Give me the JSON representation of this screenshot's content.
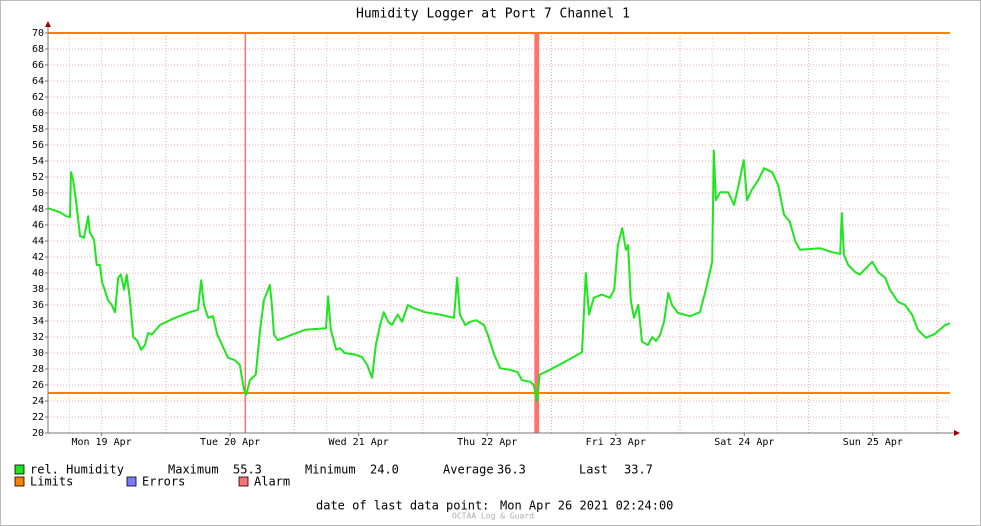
{
  "chart_data": {
    "type": "line",
    "title": "Humidity Logger at Port 7 Channel 1",
    "xlim": [
      2.0,
      170.4
    ],
    "xticks": [
      {
        "value": 12,
        "label": "Mon 19 Apr"
      },
      {
        "value": 36,
        "label": "Tue 20 Apr"
      },
      {
        "value": 60,
        "label": "Wed 21 Apr"
      },
      {
        "value": 84,
        "label": "Thu 22 Apr"
      },
      {
        "value": 108,
        "label": "Fri 23 Apr"
      },
      {
        "value": 132,
        "label": "Sat 24 Apr"
      },
      {
        "value": 156,
        "label": "Sun 25 Apr"
      }
    ],
    "xgrid": [
      6,
      12,
      18,
      24,
      30,
      36,
      42,
      48,
      54,
      60,
      66,
      72,
      78,
      84,
      90,
      96,
      102,
      108,
      114,
      120,
      126,
      132,
      138,
      144,
      150,
      156,
      162,
      168
    ],
    "ylim": [
      20,
      70
    ],
    "yticks": [
      20,
      22,
      24,
      26,
      28,
      30,
      32,
      34,
      36,
      38,
      40,
      42,
      44,
      46,
      48,
      50,
      52,
      54,
      56,
      58,
      60,
      62,
      64,
      66,
      68,
      70
    ],
    "grid": true,
    "series": [
      {
        "name": "rel. Humidity",
        "color": "#1ee61e",
        "x": [
          2.0,
          4.2,
          5.4,
          6.1,
          6.3,
          6.7,
          7.2,
          8.0,
          8.7,
          9.5,
          9.8,
          10.6,
          11.1,
          11.7,
          12.1,
          12.5,
          13.2,
          13.9,
          14.5,
          15.1,
          15.6,
          16.2,
          16.7,
          17.3,
          17.9,
          18.6,
          19.4,
          20.1,
          20.7,
          21.4,
          22.9,
          25.7,
          28.5,
          30.0,
          30.6,
          31.1,
          31.9,
          32.8,
          33.6,
          34.5,
          35.6,
          36.9,
          37.8,
          38.6,
          39.0,
          39.7,
          40.8,
          41.6,
          42.3,
          43.1,
          43.4,
          43.8,
          44.2,
          44.9,
          46.1,
          47.6,
          50.0,
          53.9,
          54.3,
          54.8,
          55.8,
          56.5,
          57.4,
          59.3,
          60.6,
          61.6,
          62.5,
          63.2,
          64.0,
          64.7,
          65.5,
          66.2,
          67.3,
          68.1,
          69.2,
          70.3,
          72.4,
          75.2,
          77.8,
          78.4,
          78.9,
          79.9,
          80.8,
          81.9,
          83.4,
          84.1,
          85.3,
          86.4,
          88.3,
          89.7,
          90.5,
          92.0,
          92.7,
          93.3,
          93.8,
          95.7,
          98.5,
          101.7,
          102.4,
          103.0,
          103.9,
          105.4,
          106.9,
          107.7,
          108.4,
          109.2,
          109.9,
          110.3,
          110.8,
          111.4,
          112.2,
          112.9,
          114.0,
          114.8,
          115.5,
          116.3,
          117.0,
          117.8,
          118.5,
          119.6,
          121.9,
          123.7,
          124.8,
          126.0,
          126.3,
          126.7,
          127.5,
          129.0,
          130.1,
          130.8,
          131.9,
          132.5,
          133.4,
          134.6,
          135.7,
          137.2,
          138.3,
          139.4,
          140.5,
          141.5,
          142.4,
          144.3,
          146.1,
          148.4,
          149.9,
          150.2,
          150.6,
          151.4,
          152.7,
          153.6,
          154.7,
          155.9,
          157.0,
          158.3,
          159.2,
          160.7,
          162.0,
          163.3,
          164.4,
          165.9,
          167.6,
          169.5,
          170.4
        ],
        "values": [
          48.1,
          47.6,
          47.1,
          47.0,
          52.6,
          51.6,
          49.1,
          44.6,
          44.4,
          47.1,
          45.1,
          44.1,
          41.0,
          41.0,
          38.8,
          38.1,
          36.6,
          36.0,
          35.1,
          39.4,
          39.8,
          37.9,
          39.8,
          36.6,
          32.0,
          31.6,
          30.4,
          31.0,
          32.5,
          32.3,
          33.5,
          34.4,
          35.1,
          35.4,
          39.1,
          36.0,
          34.4,
          34.6,
          32.3,
          31.0,
          29.4,
          29.1,
          28.5,
          25.4,
          24.8,
          26.6,
          27.3,
          32.9,
          36.6,
          37.9,
          38.5,
          36.0,
          32.3,
          31.6,
          31.9,
          32.3,
          32.9,
          33.1,
          37.1,
          32.9,
          30.4,
          30.6,
          30.0,
          29.8,
          29.5,
          28.5,
          26.9,
          31.0,
          33.5,
          35.1,
          33.9,
          33.5,
          34.8,
          33.9,
          36.0,
          35.6,
          35.1,
          34.8,
          34.4,
          39.4,
          34.8,
          33.5,
          33.9,
          34.1,
          33.5,
          32.3,
          29.8,
          28.1,
          27.9,
          27.6,
          26.6,
          26.4,
          26.0,
          24.0,
          27.3,
          27.9,
          28.9,
          30.1,
          40.0,
          34.8,
          36.9,
          37.3,
          36.9,
          37.9,
          43.5,
          45.6,
          42.9,
          43.5,
          36.6,
          34.4,
          36.0,
          31.4,
          31.0,
          32.0,
          31.5,
          32.3,
          33.9,
          37.5,
          36.0,
          35.0,
          34.6,
          35.1,
          37.9,
          41.4,
          55.3,
          49.1,
          50.1,
          50.1,
          48.5,
          50.6,
          54.1,
          49.1,
          50.4,
          51.6,
          53.1,
          52.6,
          51.0,
          47.3,
          46.4,
          44.0,
          42.9,
          43.0,
          43.1,
          42.6,
          42.4,
          47.5,
          42.3,
          41.0,
          40.1,
          39.8,
          40.6,
          41.4,
          40.1,
          39.4,
          37.9,
          36.4,
          36.0,
          34.8,
          32.9,
          31.9,
          32.4,
          33.5,
          33.7
        ]
      }
    ],
    "limits": {
      "name": "Limits",
      "color": "#ff8000",
      "values": [
        25,
        70
      ]
    },
    "errors": {
      "name": "Errors",
      "color": "#7b7bff"
    },
    "alarms": {
      "name": "Alarm",
      "color": "#ff7070",
      "spans": [
        [
          38.7,
          38.9
        ],
        [
          92.8,
          93.7
        ]
      ]
    },
    "stats": {
      "labels": [
        "Maximum",
        "Minimum",
        "Average",
        "Last"
      ],
      "values": [
        55.3,
        24.0,
        36.3,
        33.7
      ],
      "value_labels": [
        "55.3",
        "24.0",
        "36.3",
        "33.7"
      ]
    },
    "footer": {
      "label": "date of last data point:",
      "value": "Mon Apr 26 2021 02:24:00"
    },
    "watermark": "OCTAA Log & Guard"
  }
}
